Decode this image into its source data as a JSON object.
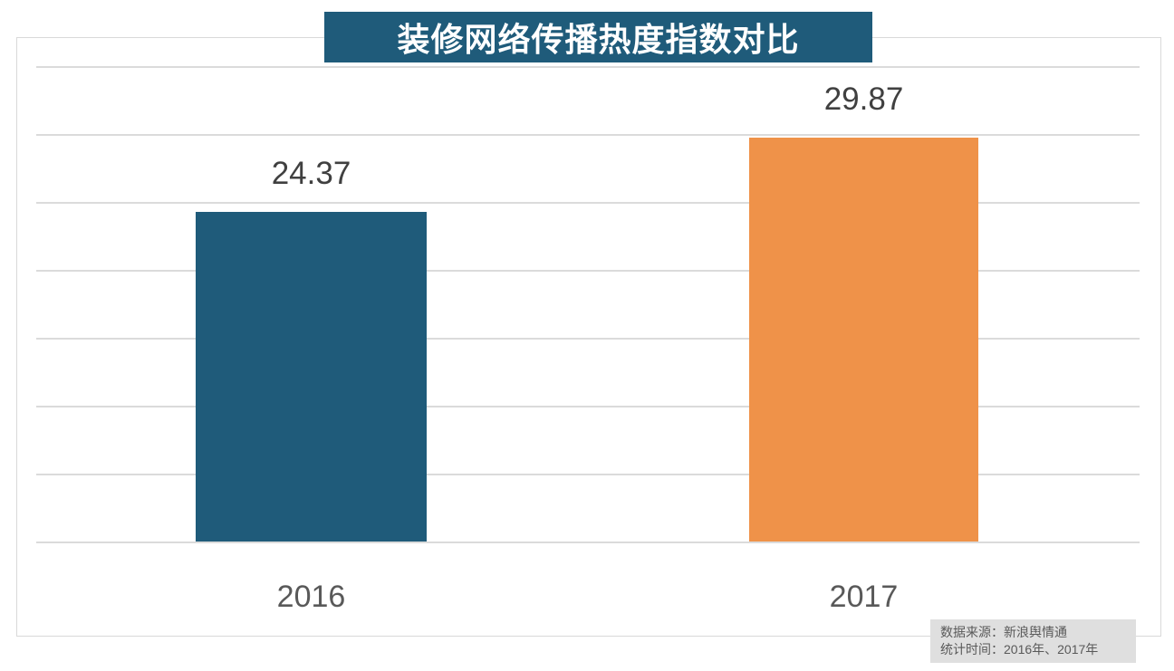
{
  "chart_data": {
    "type": "bar",
    "title": "装修网络传播热度指数对比",
    "categories": [
      "2016",
      "2017"
    ],
    "values": [
      24.37,
      29.87
    ],
    "value_labels": [
      "24.37",
      "29.87"
    ],
    "series": [
      {
        "name": "2016",
        "values": [
          24.37
        ]
      },
      {
        "name": "2017",
        "values": [
          29.87
        ]
      }
    ],
    "bar_colors": [
      "#1f5b7a",
      "#ef9249"
    ],
    "xlabel": "",
    "ylabel": "",
    "ylim": [
      0,
      35.2
    ],
    "gridline_step": 5,
    "gridline_count": 8,
    "grid": true,
    "legend_position": "none"
  },
  "source_note": {
    "line1": "数据来源：新浪舆情通",
    "line2": "统计时间：2016年、2017年"
  },
  "colors": {
    "title_bg": "#1f5b7a",
    "title_text": "#ffffff",
    "bar_2016": "#1f5b7a",
    "bar_2017": "#ef9249",
    "gridline": "#dbdbdb",
    "plot_border": "#d9d9d9",
    "value_label_text": "#404040",
    "axis_label_text": "#595959",
    "source_bg": "#dfdfdf",
    "source_text": "#595959"
  }
}
